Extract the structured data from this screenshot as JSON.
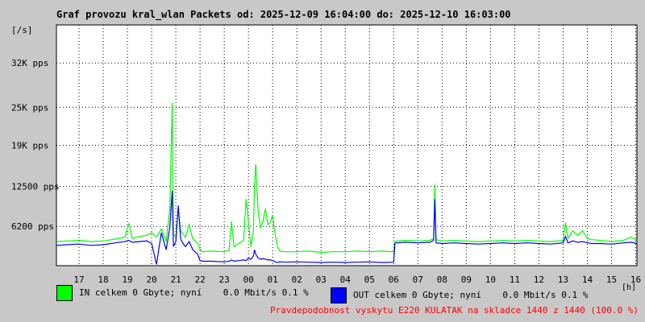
{
  "chart_data": {
    "type": "line",
    "title": "Graf provozu kral_wlan Packets od: 2025-12-09 16:04:00 do: 2025-12-10 16:03:00",
    "ylabel": "[/s]",
    "xlabel": "[h]",
    "ylim": [
      0,
      38000
    ],
    "yticks": [
      {
        "value": 6200,
        "label": "6200 pps"
      },
      {
        "value": 12500,
        "label": "12500 pps"
      },
      {
        "value": 19000,
        "label": "19K pps"
      },
      {
        "value": 25000,
        "label": "25K pps"
      },
      {
        "value": 32000,
        "label": "32K pps"
      }
    ],
    "x_ticks": [
      "17",
      "18",
      "19",
      "20",
      "21",
      "22",
      "23",
      "00",
      "01",
      "02",
      "03",
      "04",
      "05",
      "06",
      "07",
      "08",
      "09",
      "10",
      "11",
      "12",
      "13",
      "14",
      "15",
      "16"
    ],
    "xlim": [
      16.0667,
      40.05
    ],
    "grid": true,
    "series": [
      {
        "name": "IN",
        "color": "#00ff00",
        "x": [
          16.07,
          16.5,
          17.0,
          17.5,
          18.0,
          18.5,
          18.9,
          19.05,
          19.2,
          19.5,
          19.8,
          20.0,
          20.2,
          20.4,
          20.6,
          20.75,
          20.85,
          20.9,
          21.0,
          21.1,
          21.2,
          21.3,
          21.4,
          21.55,
          21.7,
          21.9,
          22.0,
          22.1,
          22.5,
          23.0,
          23.2,
          23.3,
          23.4,
          23.6,
          23.8,
          23.9,
          24.0,
          24.1,
          24.2,
          24.25,
          24.3,
          24.4,
          24.5,
          24.6,
          24.7,
          24.8,
          24.9,
          25.0,
          25.1,
          25.2,
          25.3,
          25.5,
          26.0,
          26.5,
          27.0,
          27.5,
          28.0,
          28.5,
          29.0,
          29.5,
          30.0,
          30.05,
          30.1,
          30.5,
          31.0,
          31.5,
          31.65,
          31.7,
          31.75,
          32.0,
          32.5,
          33.0,
          33.5,
          34.0,
          34.5,
          35.0,
          35.5,
          36.0,
          36.5,
          37.0,
          37.1,
          37.2,
          37.4,
          37.6,
          37.8,
          38.0,
          38.2,
          38.5,
          39.0,
          39.5,
          39.8,
          40.05
        ],
        "y": [
          3800,
          3900,
          4000,
          3800,
          3900,
          4200,
          4500,
          6700,
          4300,
          4600,
          4800,
          5200,
          4500,
          5800,
          3800,
          9000,
          25700,
          5000,
          4500,
          9000,
          5500,
          5000,
          4500,
          6500,
          4200,
          3600,
          2600,
          2200,
          2300,
          2200,
          2400,
          7000,
          3000,
          3500,
          4000,
          10500,
          6800,
          3000,
          5200,
          12800,
          16000,
          8500,
          6000,
          7000,
          9000,
          6500,
          6800,
          8000,
          5000,
          3000,
          2300,
          2200,
          2200,
          2300,
          2100,
          2200,
          2200,
          2300,
          2200,
          2300,
          2200,
          3800,
          3900,
          4000,
          3900,
          4000,
          4300,
          12800,
          4100,
          3900,
          4000,
          3900,
          3800,
          3900,
          4000,
          3900,
          4000,
          3900,
          3800,
          4000,
          6800,
          4300,
          5500,
          4800,
          5500,
          4300,
          4100,
          4000,
          3800,
          4000,
          4500,
          4000
        ]
      },
      {
        "name": "OUT",
        "color": "#0000ff",
        "x": [
          16.07,
          16.5,
          17.0,
          17.5,
          18.0,
          18.5,
          18.9,
          19.05,
          19.2,
          19.5,
          19.8,
          20.0,
          20.2,
          20.4,
          20.6,
          20.75,
          20.85,
          20.9,
          21.0,
          21.1,
          21.2,
          21.3,
          21.4,
          21.55,
          21.7,
          21.9,
          22.0,
          22.1,
          22.5,
          23.0,
          23.2,
          23.3,
          23.4,
          23.6,
          23.8,
          23.9,
          24.0,
          24.1,
          24.2,
          24.25,
          24.3,
          24.4,
          24.5,
          24.6,
          24.7,
          24.8,
          24.9,
          25.0,
          25.1,
          25.2,
          25.3,
          25.5,
          26.0,
          26.5,
          27.0,
          27.5,
          28.0,
          28.5,
          29.0,
          29.5,
          30.0,
          30.05,
          30.1,
          30.5,
          31.0,
          31.5,
          31.65,
          31.7,
          31.75,
          32.0,
          32.5,
          33.0,
          33.5,
          34.0,
          34.5,
          35.0,
          35.5,
          36.0,
          36.5,
          37.0,
          37.1,
          37.2,
          37.4,
          37.6,
          37.8,
          38.0,
          38.2,
          38.5,
          39.0,
          39.5,
          39.8,
          40.05
        ],
        "y": [
          3200,
          3300,
          3400,
          3200,
          3300,
          3600,
          3800,
          4000,
          3700,
          3800,
          3900,
          3500,
          200,
          5200,
          2500,
          6000,
          11800,
          3000,
          3800,
          9500,
          4200,
          3500,
          3000,
          3800,
          2500,
          1800,
          800,
          700,
          700,
          600,
          700,
          900,
          700,
          800,
          900,
          800,
          1200,
          1000,
          1500,
          2500,
          1800,
          1200,
          1000,
          1100,
          1000,
          900,
          900,
          800,
          600,
          500,
          600,
          550,
          600,
          550,
          500,
          550,
          500,
          550,
          600,
          500,
          550,
          3500,
          3600,
          3700,
          3600,
          3700,
          4000,
          10500,
          3600,
          3500,
          3600,
          3500,
          3400,
          3500,
          3600,
          3500,
          3600,
          3500,
          3400,
          3600,
          4600,
          3600,
          3900,
          3700,
          3800,
          3600,
          3500,
          3500,
          3400,
          3600,
          3700,
          3500
        ]
      }
    ]
  },
  "legend": {
    "in_text": "IN celkem 0 Gbyte; nyní    0.0 Mbit/s 0.1 %",
    "out_text": "OUT celkem 0 Gbyte; nyní    0.0 Mbit/s 0.1 %",
    "in_color": "#00ff00",
    "out_color": "#0000ff"
  },
  "note": "Pravdepodobnost vyskytu E220 KULATAK na skladce 1440 z 1440 (100.0 %)"
}
